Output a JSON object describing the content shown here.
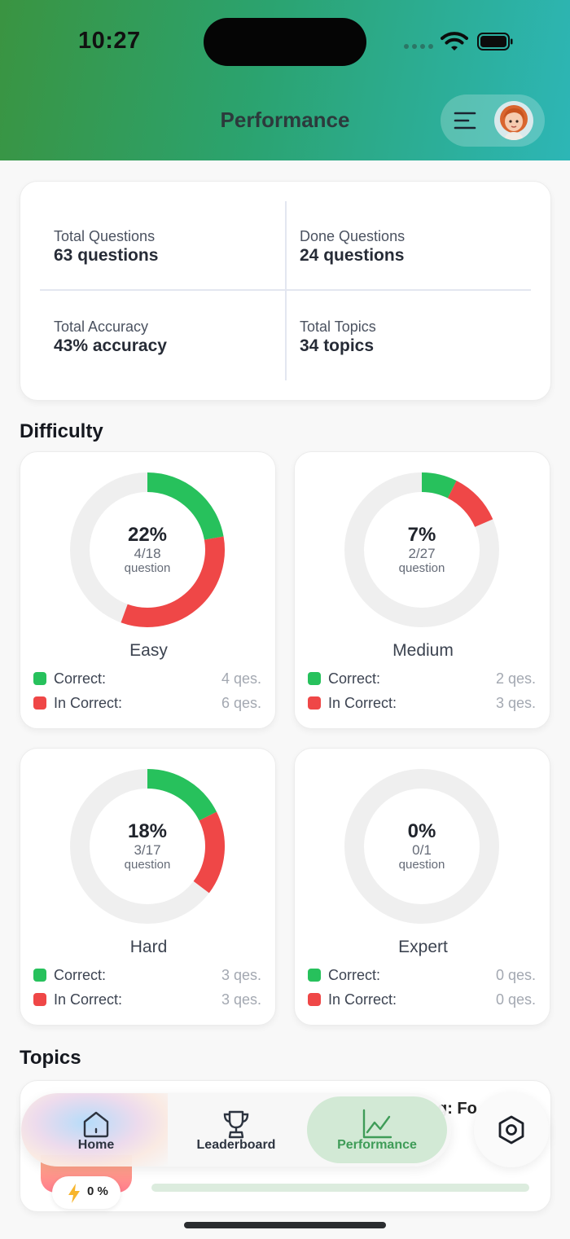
{
  "status_bar": {
    "time": "10:27"
  },
  "header": {
    "title": "Performance"
  },
  "stats": {
    "total_questions": {
      "label": "Total Questions",
      "value": "63 questions"
    },
    "done_questions": {
      "label": "Done Questions",
      "value": "24 questions"
    },
    "total_accuracy": {
      "label": "Total Accuracy",
      "value": "43% accuracy"
    },
    "total_topics": {
      "label": "Total Topics",
      "value": "34 topics"
    }
  },
  "difficulty": {
    "title": "Difficulty",
    "correct_label": "Correct:",
    "incorrect_label": "In Correct:",
    "unit": "question",
    "cards": [
      {
        "name": "Easy",
        "percent": "22%",
        "fraction": "4/18",
        "correct": "4 qes.",
        "incorrect": "6 qes.",
        "correct_n": 4,
        "incorrect_n": 6,
        "total_n": 18
      },
      {
        "name": "Medium",
        "percent": "7%",
        "fraction": "2/27",
        "correct": "2 qes.",
        "incorrect": "3 qes.",
        "correct_n": 2,
        "incorrect_n": 3,
        "total_n": 27
      },
      {
        "name": "Hard",
        "percent": "18%",
        "fraction": "3/17",
        "correct": "3 qes.",
        "incorrect": "3 qes.",
        "correct_n": 3,
        "incorrect_n": 3,
        "total_n": 17
      },
      {
        "name": "Expert",
        "percent": "0%",
        "fraction": "0/1",
        "correct": "0 qes.",
        "incorrect": "0 qes.",
        "correct_n": 0,
        "incorrect_n": 0,
        "total_n": 1
      }
    ]
  },
  "topics": {
    "title": "Topics",
    "first_topic_title_fragment": "g: Fo",
    "first_topic_progress_text": "0 %",
    "first_topic_progress": 0
  },
  "nav": {
    "items": [
      {
        "label": "Home",
        "icon": "home-icon"
      },
      {
        "label": "Leaderboard",
        "icon": "trophy-icon"
      },
      {
        "label": "Performance",
        "icon": "chart-line-icon"
      }
    ],
    "settings_icon": "settings-icon"
  },
  "colors": {
    "correct": "#27c15c",
    "incorrect": "#ef4747",
    "ring_track": "#efefef",
    "accent": "#3f9c58"
  }
}
